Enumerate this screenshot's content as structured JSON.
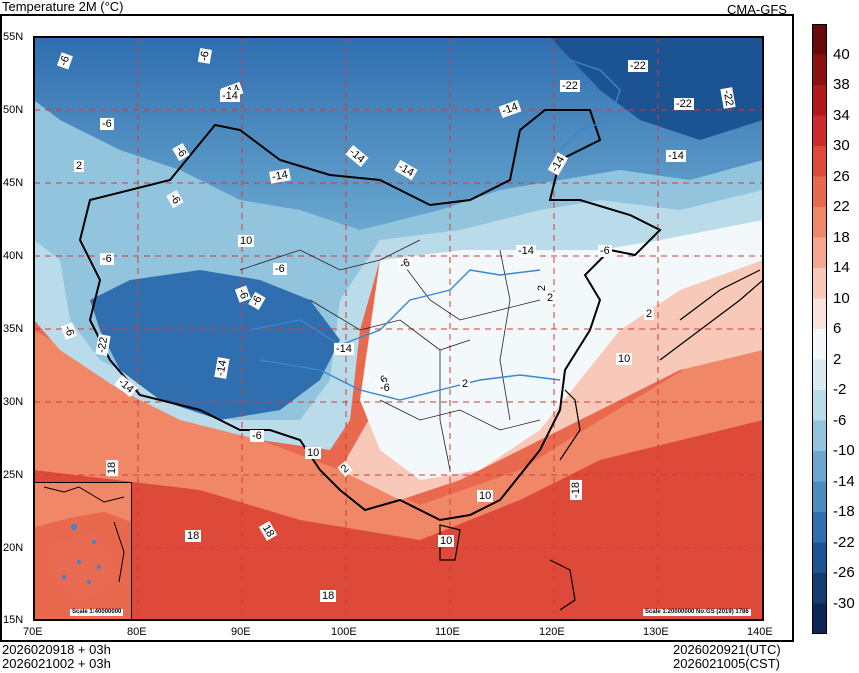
{
  "title": "Temperature  2M (°C)",
  "source": "CMA-GFS",
  "footer": {
    "left_line1": "2026020918 + 03h",
    "left_line2": "2026021002 + 03h",
    "right_line1": "2026020921(UTC)",
    "right_line2": "2026021005(CST)"
  },
  "axes": {
    "lon_labels": [
      "70E",
      "80E",
      "90E",
      "100E",
      "110E",
      "120E",
      "130E",
      "140E"
    ],
    "lat_labels": [
      "55N",
      "50N",
      "45N",
      "40N",
      "35N",
      "30N",
      "25N",
      "20N",
      "15N"
    ]
  },
  "scale_main": "Scale 1:20000000 No:GS (2019) 1786",
  "scale_inset": "Scale 1:40000000",
  "colorbar": {
    "labels": [
      "40",
      "38",
      "34",
      "30",
      "26",
      "22",
      "18",
      "14",
      "10",
      "6",
      "2",
      "-2",
      "-6",
      "-10",
      "-14",
      "-18",
      "-22",
      "-26",
      "-30"
    ],
    "colors": [
      "#670a0a",
      "#8c1010",
      "#b01919",
      "#cc2b2b",
      "#de4a3a",
      "#e9694f",
      "#f08868",
      "#f5a88e",
      "#f8c8b8",
      "#fbe3dd",
      "#f3f8fb",
      "#d8ebf3",
      "#b9dbea",
      "#92c4de",
      "#6aa8d0",
      "#4a8bc2",
      "#2f6eaf",
      "#1c5393",
      "#123c72",
      "#0b2854"
    ]
  },
  "contour_labels": [
    "-6",
    "-6",
    "-14",
    "-6",
    "-14",
    "-22",
    "-22",
    "-22",
    "-14",
    "-6",
    "-14",
    "-14",
    "-14",
    "-14",
    "-6",
    "-6",
    "-6",
    "-6",
    "-6",
    "-14",
    "-6",
    "-22",
    "-14",
    "-14",
    "-6",
    "-14",
    "-6",
    "2",
    "2",
    "2",
    "2",
    "10",
    "10",
    "10",
    "10",
    "18",
    "18",
    "18",
    "18",
    "-18",
    "2",
    "10",
    "-6",
    "-6",
    "-6",
    "2",
    "-14",
    "-22"
  ]
}
